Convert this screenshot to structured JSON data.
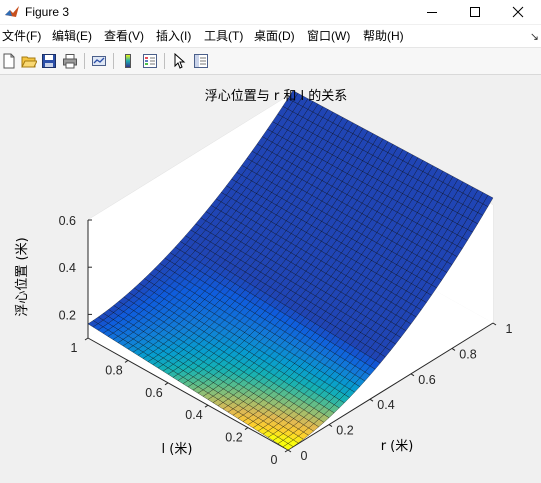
{
  "window": {
    "title": "Figure 3"
  },
  "menu": {
    "items": [
      "文件(F)",
      "编辑(E)",
      "查看(V)",
      "插入(I)",
      "工具(T)",
      "桌面(D)",
      "窗口(W)",
      "帮助(H)"
    ],
    "overflow": "↘"
  },
  "toolbar": {
    "icons": [
      "new-figure-icon",
      "open-file-icon",
      "save-icon",
      "print-icon",
      "link-plot-icon",
      "colorbar-icon",
      "legend-icon",
      "pointer-icon",
      "property-inspector-icon"
    ]
  },
  "chart_data": {
    "type": "surface",
    "title": "浮心位置与 r 和 l 的关系",
    "xlabel": "r (米)",
    "ylabel": "l (米)",
    "zlabel": "浮心位置 (米)",
    "x_ticks": [
      "0",
      "0.2",
      "0.4",
      "0.6",
      "0.8",
      "1"
    ],
    "y_ticks": [
      "0",
      "0.2",
      "0.4",
      "0.6",
      "0.8",
      "1"
    ],
    "z_ticks": [
      "0.2",
      "0.4",
      "0.6"
    ],
    "xlim": [
      0,
      1
    ],
    "ylim": [
      0,
      1
    ],
    "zlim": [
      0.1,
      0.6
    ],
    "grid": true,
    "colormap": "parula",
    "surface_z": {
      "at_r0_l0": 0.1,
      "at_r0_l1": 0.16,
      "at_r1_l0": 0.63,
      "at_r1_l1": 0.61
    }
  }
}
